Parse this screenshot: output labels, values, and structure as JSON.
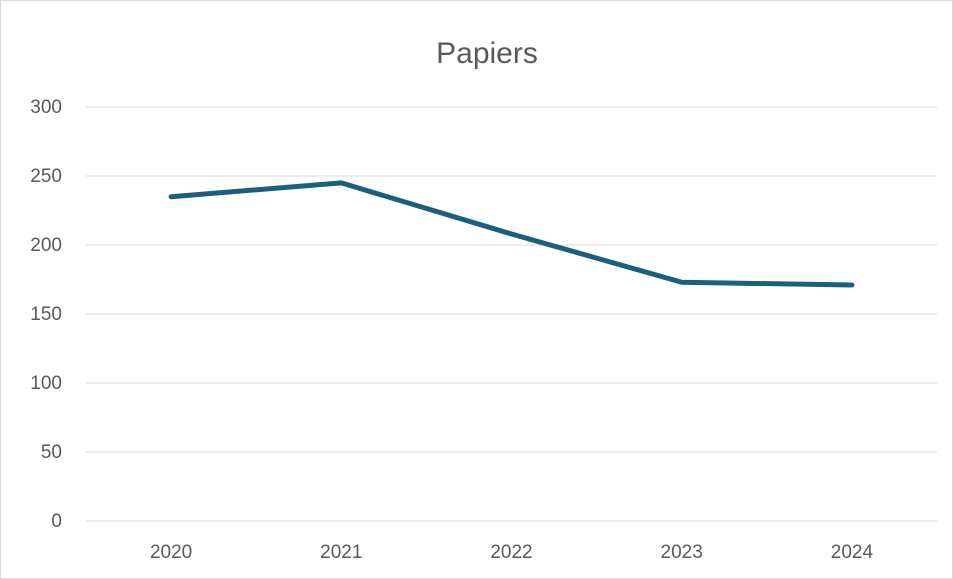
{
  "chart_data": {
    "type": "line",
    "title": "Papiers",
    "xlabel": "",
    "ylabel": "",
    "categories": [
      "2020",
      "2021",
      "2022",
      "2023",
      "2024"
    ],
    "series": [
      {
        "values": [
          235,
          245,
          208,
          173,
          171
        ],
        "color": "#1b5e7e"
      }
    ],
    "ylim": [
      0,
      300
    ],
    "yticks": [
      "0",
      "50",
      "100",
      "150",
      "200",
      "250",
      "300"
    ],
    "grid": true,
    "legend": "none"
  }
}
